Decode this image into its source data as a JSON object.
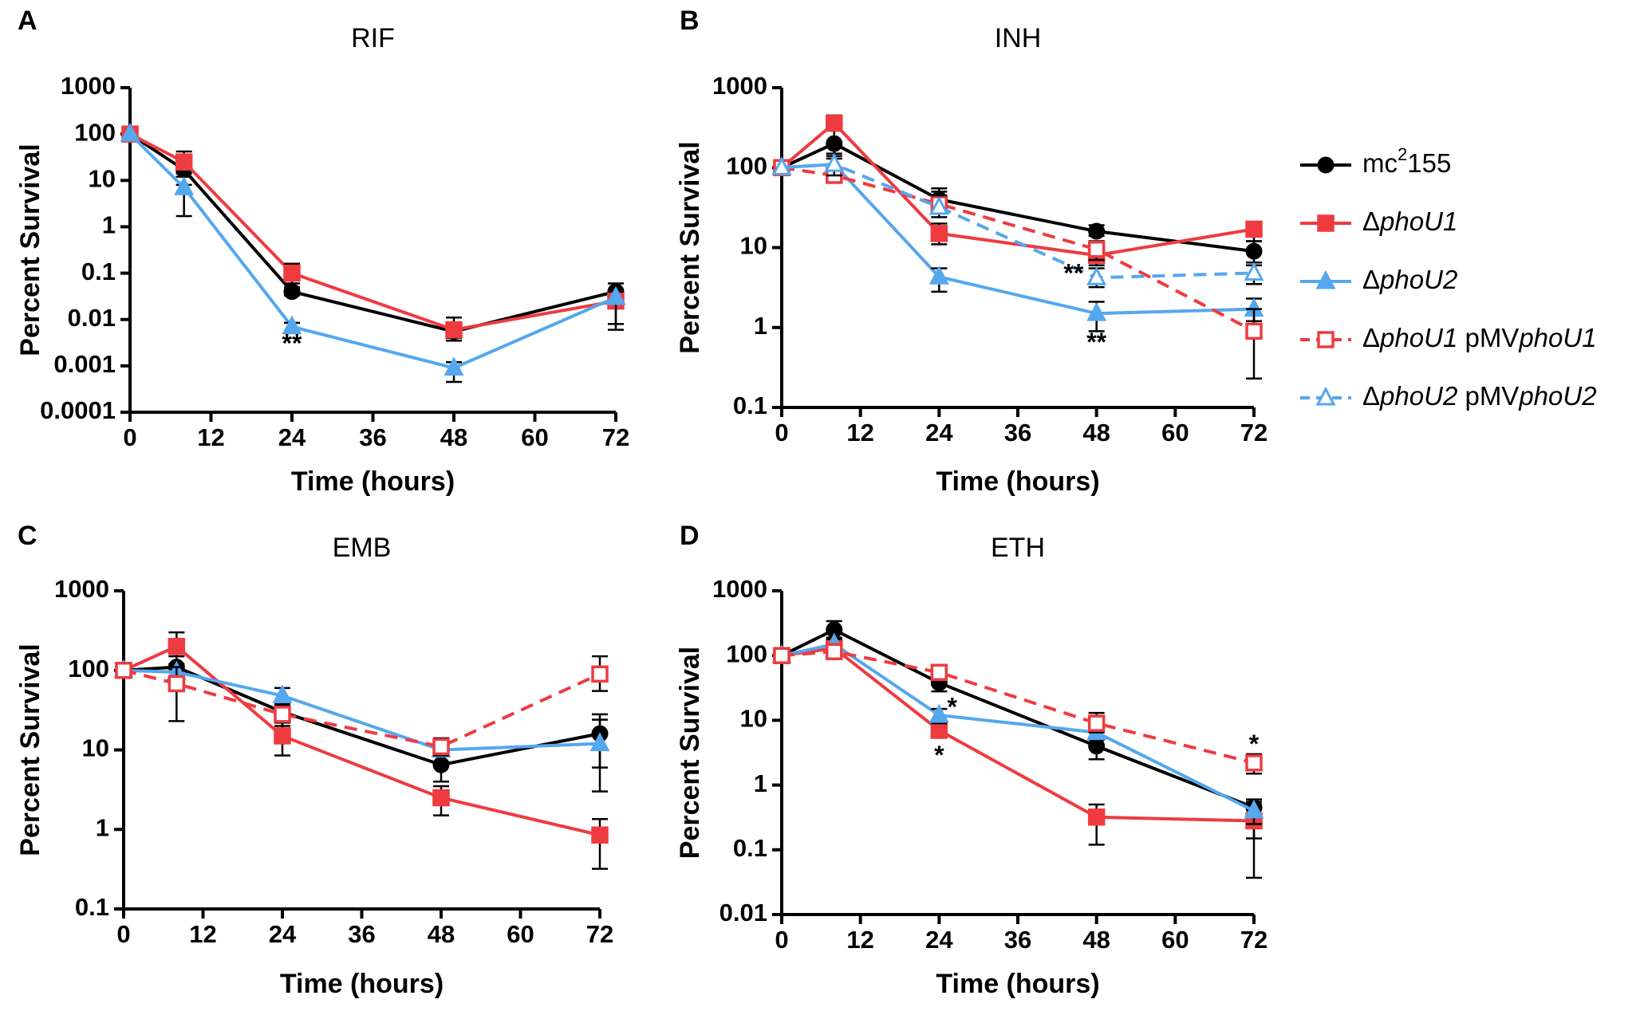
{
  "figure": {
    "series_styles": {
      "mc2155": {
        "color": "#000000",
        "marker": "circle",
        "filled": true,
        "dashed": false
      },
      "phoU1": {
        "color": "#EE3B40",
        "marker": "square",
        "filled": true,
        "dashed": false
      },
      "phoU2": {
        "color": "#55A7EE",
        "marker": "triangle",
        "filled": true,
        "dashed": false
      },
      "phoU1_comp": {
        "color": "#EE3B40",
        "marker": "square",
        "filled": false,
        "dashed": true
      },
      "phoU2_comp": {
        "color": "#55A7EE",
        "marker": "triangle",
        "filled": false,
        "dashed": true
      }
    },
    "legend": [
      {
        "key": "mc2155",
        "prefix": "mc",
        "sup": "2",
        "suffix": "155"
      },
      {
        "key": "phoU1",
        "delta": "Δ",
        "gene": "phoU1",
        "extra": "",
        "gene2": ""
      },
      {
        "key": "phoU2",
        "delta": "Δ",
        "gene": "phoU2",
        "extra": "",
        "gene2": ""
      },
      {
        "key": "phoU1_comp",
        "delta": "Δ",
        "gene": "phoU1",
        "extra": " pMV",
        "gene2": "phoU1"
      },
      {
        "key": "phoU2_comp",
        "delta": "Δ",
        "gene": "phoU2",
        "extra": " pMV",
        "gene2": "phoU2"
      }
    ]
  },
  "chart_data": [
    {
      "type": "line",
      "panel": "A",
      "title": "RIF",
      "xlabel": "Time (hours)",
      "ylabel": "Percent  Survival",
      "yscale": "log",
      "xlim": [
        0,
        72
      ],
      "ylim": [
        0.0001,
        1000
      ],
      "xticks": [
        0,
        12,
        24,
        36,
        48,
        60,
        72
      ],
      "yticks": [
        0.0001,
        0.001,
        0.01,
        0.1,
        1,
        10,
        100,
        1000
      ],
      "ytick_labels": [
        "0.0001",
        "0.001",
        "0.01",
        "0.1",
        "1",
        "10",
        "100",
        "1000"
      ],
      "series": [
        {
          "key": "mc2155",
          "x": [
            0,
            8,
            24,
            48,
            72
          ],
          "y": [
            100,
            17,
            0.04,
            0.0055,
            0.04
          ],
          "err_lo": [
            null,
            8,
            0.033,
            0.0035,
            0.028
          ],
          "err_hi": [
            null,
            28,
            0.05,
            0.008,
            0.06
          ]
        },
        {
          "key": "phoU1",
          "x": [
            0,
            8,
            24,
            48,
            72
          ],
          "y": [
            100,
            25,
            0.1,
            0.006,
            0.025
          ],
          "err_lo": [
            null,
            14,
            0.06,
            0.004,
            0.006
          ],
          "err_hi": [
            null,
            42,
            0.16,
            0.011,
            0.04
          ]
        },
        {
          "key": "phoU2",
          "x": [
            0,
            8,
            24,
            48,
            72
          ],
          "y": [
            100,
            7,
            0.007,
            0.0009,
            0.03
          ],
          "err_lo": [
            null,
            1.7,
            0.0055,
            0.00045,
            0.008
          ],
          "err_hi": [
            null,
            12,
            0.0085,
            0.0012,
            0.04
          ]
        }
      ],
      "annotations": [
        {
          "text": "**",
          "x": 24,
          "y": 0.0028
        }
      ]
    },
    {
      "type": "line",
      "panel": "B",
      "title": "INH",
      "xlabel": "Time (hours)",
      "ylabel": "Percent  Survival",
      "yscale": "log",
      "xlim": [
        0,
        72
      ],
      "ylim": [
        0.1,
        1000
      ],
      "xticks": [
        0,
        12,
        24,
        36,
        48,
        60,
        72
      ],
      "yticks": [
        0.1,
        1,
        10,
        100,
        1000
      ],
      "ytick_labels": [
        "0.1",
        "1",
        "10",
        "100",
        "1000"
      ],
      "series": [
        {
          "key": "mc2155",
          "x": [
            0,
            8,
            24,
            48,
            72
          ],
          "y": [
            100,
            200,
            40,
            16,
            9
          ],
          "err_lo": [
            null,
            140,
            28,
            14,
            6.5
          ],
          "err_hi": [
            null,
            300,
            55,
            19,
            12
          ]
        },
        {
          "key": "phoU1",
          "x": [
            0,
            8,
            24,
            48,
            72
          ],
          "y": [
            100,
            360,
            15,
            8,
            17
          ],
          "err_lo": [
            null,
            290,
            11,
            6,
            12
          ],
          "err_hi": [
            null,
            450,
            20,
            11,
            21
          ]
        },
        {
          "key": "phoU2",
          "x": [
            0,
            8,
            24,
            48,
            72
          ],
          "y": [
            100,
            110,
            4.3,
            1.5,
            1.7
          ],
          "err_lo": [
            null,
            70,
            2.8,
            0.9,
            1.2
          ],
          "err_hi": [
            null,
            150,
            5.5,
            2.1,
            2.3
          ]
        },
        {
          "key": "phoU1_comp",
          "x": [
            0,
            8,
            24,
            48,
            72
          ],
          "y": [
            100,
            80,
            35,
            9.5,
            0.9
          ],
          "err_lo": [
            null,
            70,
            28,
            7,
            0.23
          ],
          "err_hi": [
            null,
            95,
            50,
            12,
            1.7
          ]
        },
        {
          "key": "phoU2_comp",
          "x": [
            0,
            8,
            24,
            48,
            72
          ],
          "y": [
            100,
            110,
            32,
            4.2,
            4.8
          ],
          "err_lo": [
            null,
            80,
            24,
            3.2,
            3.5
          ],
          "err_hi": [
            null,
            130,
            45,
            5.5,
            6
          ]
        }
      ],
      "annotations": [
        {
          "text": "**",
          "x": 44.5,
          "y": 4.5
        },
        {
          "text": "**",
          "x": 48,
          "y": 0.62
        }
      ]
    },
    {
      "type": "line",
      "panel": "C",
      "title": "EMB",
      "xlabel": "Time (hours)",
      "ylabel": "Percent  Survival",
      "yscale": "log",
      "xlim": [
        0,
        72
      ],
      "ylim": [
        0.1,
        1000
      ],
      "xticks": [
        0,
        12,
        24,
        36,
        48,
        60,
        72
      ],
      "yticks": [
        0.1,
        1,
        10,
        100,
        1000
      ],
      "ytick_labels": [
        "0.1",
        "1",
        "10",
        "100",
        "1000"
      ],
      "series": [
        {
          "key": "mc2155",
          "x": [
            0,
            8,
            24,
            48,
            72
          ],
          "y": [
            100,
            110,
            30,
            6.5,
            16
          ],
          "err_lo": [
            null,
            60,
            24,
            4,
            6
          ],
          "err_hi": [
            null,
            170,
            36,
            9,
            28
          ]
        },
        {
          "key": "phoU1",
          "x": [
            0,
            8,
            24,
            48,
            72
          ],
          "y": [
            100,
            200,
            15,
            2.5,
            0.85
          ],
          "err_lo": [
            null,
            150,
            8.5,
            1.5,
            0.32
          ],
          "err_hi": [
            null,
            300,
            22,
            3.5,
            1.35
          ]
        },
        {
          "key": "phoU2",
          "x": [
            0,
            8,
            24,
            48,
            72
          ],
          "y": [
            100,
            95,
            48,
            10,
            12
          ],
          "err_lo": [
            null,
            75,
            38,
            7,
            3
          ],
          "err_hi": [
            null,
            120,
            60,
            13,
            24
          ]
        },
        {
          "key": "phoU1_comp",
          "x": [
            0,
            8,
            24,
            48,
            72
          ],
          "y": [
            100,
            68,
            28,
            11,
            90
          ],
          "err_lo": [
            null,
            23,
            20,
            8.5,
            55
          ],
          "err_hi": [
            null,
            110,
            36,
            14,
            150
          ]
        }
      ],
      "annotations": []
    },
    {
      "type": "line",
      "panel": "D",
      "title": "ETH",
      "xlabel": "Time (hours)",
      "ylabel": "Percent  Survival",
      "yscale": "log",
      "xlim": [
        0,
        72
      ],
      "ylim": [
        0.01,
        1000
      ],
      "xticks": [
        0,
        12,
        24,
        36,
        48,
        60,
        72
      ],
      "yticks": [
        0.01,
        0.1,
        1,
        10,
        100,
        1000
      ],
      "ytick_labels": [
        "0.01",
        "0.1",
        "1",
        "10",
        "100",
        "1000"
      ],
      "series": [
        {
          "key": "mc2155",
          "x": [
            0,
            8,
            24,
            48,
            72
          ],
          "y": [
            100,
            250,
            38,
            4,
            0.45
          ],
          "err_lo": [
            null,
            190,
            28,
            2.5,
            0.15
          ],
          "err_hi": [
            null,
            340,
            48,
            5.5,
            0.6
          ]
        },
        {
          "key": "phoU1",
          "x": [
            0,
            8,
            24,
            48,
            72
          ],
          "y": [
            100,
            130,
            7,
            0.32,
            0.28
          ],
          "err_lo": [
            null,
            110,
            5.5,
            0.12,
            0.037
          ],
          "err_hi": [
            null,
            150,
            8.5,
            0.5,
            0.5
          ]
        },
        {
          "key": "phoU2",
          "x": [
            0,
            8,
            24,
            48,
            72
          ],
          "y": [
            100,
            150,
            12,
            6.5,
            0.4
          ],
          "err_lo": [
            null,
            120,
            9,
            5,
            0.25
          ],
          "err_hi": [
            null,
            180,
            15,
            8,
            0.55
          ]
        },
        {
          "key": "phoU1_comp",
          "x": [
            0,
            8,
            24,
            48,
            72
          ],
          "y": [
            100,
            115,
            55,
            9,
            2.2
          ],
          "err_lo": [
            null,
            100,
            45,
            6.5,
            1.5
          ],
          "err_hi": [
            null,
            135,
            65,
            13,
            3
          ]
        }
      ],
      "annotations": [
        {
          "text": "*",
          "x": 24,
          "y": 2.7
        },
        {
          "text": "*",
          "x": 26,
          "y": 15
        },
        {
          "text": "*",
          "x": 72,
          "y": 4
        }
      ]
    }
  ]
}
